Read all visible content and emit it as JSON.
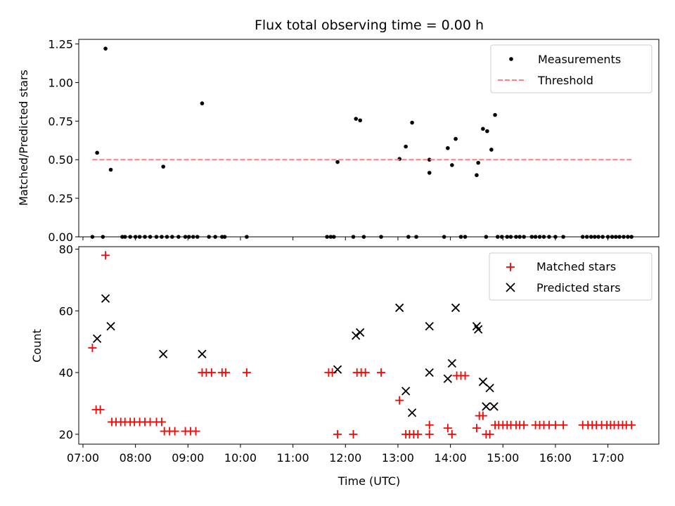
{
  "chart_data": [
    {
      "type": "scatter",
      "title": "Flux total observing time = 0.00 h",
      "xlabel": "",
      "ylabel": "Matched/Predicted stars",
      "xlim": [
        6.92,
        17.97
      ],
      "ylim": [
        0,
        1.28
      ],
      "yticks": [
        0,
        0.25,
        0.5,
        0.75,
        1.0,
        1.25
      ],
      "ytick_labels": [
        "0.00",
        "0.25",
        "0.50",
        "0.75",
        "1.00",
        "1.25"
      ],
      "legend": {
        "position": "top-right",
        "entries": [
          "Measurements",
          "Threshold"
        ]
      },
      "series": [
        {
          "name": "Measurements",
          "marker": "dot",
          "color": "#000000",
          "x": [
            7.27,
            7.43,
            7.53,
            8.53,
            9.27,
            11.85,
            12.2,
            12.28,
            13.03,
            13.15,
            13.27,
            13.6,
            13.6,
            13.95,
            14.03,
            14.1,
            14.5,
            14.53,
            14.62,
            14.7,
            14.78,
            14.85,
            7.18,
            7.38,
            7.75,
            7.8,
            7.9,
            8.0,
            8.08,
            8.18,
            8.28,
            8.4,
            8.5,
            8.6,
            8.7,
            8.82,
            8.95,
            9.02,
            9.1,
            9.18,
            9.4,
            9.52,
            9.65,
            9.7,
            10.12,
            11.65,
            11.72,
            11.78,
            12.15,
            12.35,
            12.68,
            13.2,
            13.35,
            13.88,
            14.2,
            14.28,
            14.68,
            14.9,
            14.98,
            15.08,
            15.15,
            15.25,
            15.32,
            15.4,
            15.55,
            15.62,
            15.7,
            15.78,
            15.88,
            16.0,
            16.15,
            16.52,
            16.6,
            16.68,
            16.75,
            16.82,
            16.9,
            17.0,
            17.08,
            17.15,
            17.22,
            17.3,
            17.38,
            17.45
          ],
          "y": [
            0.545,
            1.22,
            0.435,
            0.455,
            0.865,
            0.485,
            0.765,
            0.755,
            0.505,
            0.585,
            0.74,
            0.5,
            0.415,
            0.575,
            0.465,
            0.635,
            0.4,
            0.48,
            0.7,
            0.685,
            0.565,
            0.79,
            0,
            0,
            0,
            0,
            0,
            0,
            0,
            0,
            0,
            0,
            0,
            0,
            0,
            0,
            0,
            0,
            0,
            0,
            0,
            0,
            0,
            0,
            0,
            0,
            0,
            0,
            0,
            0,
            0,
            0,
            0,
            0,
            0,
            0,
            0,
            0,
            0,
            0,
            0,
            0,
            0,
            0,
            0,
            0,
            0,
            0,
            0,
            0,
            0,
            0,
            0,
            0,
            0,
            0,
            0,
            0,
            0,
            0,
            0,
            0,
            0,
            0
          ]
        },
        {
          "name": "Threshold",
          "line_style": "dashed",
          "color": "#ff7f7f",
          "x": [
            7.18,
            17.45
          ],
          "y": [
            0.5,
            0.5
          ]
        }
      ]
    },
    {
      "type": "scatter",
      "title": "",
      "xlabel": "Time (UTC)",
      "ylabel": "Count",
      "xlim": [
        6.92,
        17.97
      ],
      "ylim": [
        16.8,
        80.8
      ],
      "yticks": [
        20,
        40,
        60,
        80
      ],
      "ytick_labels": [
        "20",
        "40",
        "60",
        "80"
      ],
      "xticks": [
        7,
        8,
        9,
        10,
        11,
        12,
        13,
        14,
        15,
        16,
        17
      ],
      "xtick_labels": [
        "07:00",
        "08:00",
        "09:00",
        "10:00",
        "11:00",
        "12:00",
        "13:00",
        "14:00",
        "15:00",
        "16:00",
        "17:00"
      ],
      "legend": {
        "position": "top-right",
        "entries": [
          "Matched stars",
          "Predicted stars"
        ]
      },
      "series": [
        {
          "name": "Matched stars",
          "marker": "plus",
          "color": "#ff0000",
          "x": [
            7.18,
            7.25,
            7.33,
            7.43,
            7.55,
            7.63,
            7.72,
            7.8,
            7.9,
            7.98,
            8.08,
            8.18,
            8.28,
            8.4,
            8.5,
            8.55,
            8.65,
            8.75,
            8.95,
            9.05,
            9.15,
            9.27,
            9.35,
            9.45,
            9.65,
            9.72,
            10.12,
            11.68,
            11.75,
            11.85,
            12.15,
            12.22,
            12.3,
            12.38,
            12.68,
            13.03,
            13.15,
            13.22,
            13.3,
            13.38,
            13.6,
            13.6,
            13.95,
            14.03,
            14.12,
            14.2,
            14.28,
            14.5,
            14.55,
            14.62,
            14.68,
            14.75,
            14.85,
            14.92,
            15.0,
            15.08,
            15.15,
            15.25,
            15.32,
            15.4,
            15.62,
            15.7,
            15.78,
            15.88,
            16.0,
            16.15,
            16.52,
            16.62,
            16.7,
            16.78,
            16.88,
            16.98,
            17.05,
            17.12,
            17.2,
            17.28,
            17.35,
            17.45
          ],
          "y": [
            48,
            28,
            28,
            78,
            24,
            24,
            24,
            24,
            24,
            24,
            24,
            24,
            24,
            24,
            24,
            21,
            21,
            21,
            21,
            21,
            21,
            40,
            40,
            40,
            40,
            40,
            40,
            40,
            40,
            20,
            20,
            40,
            40,
            40,
            40,
            31,
            20,
            20,
            20,
            20,
            23,
            20,
            22,
            20,
            39,
            39,
            39,
            22,
            26,
            26,
            20,
            20,
            23,
            23,
            23,
            23,
            23,
            23,
            23,
            23,
            23,
            23,
            23,
            23,
            23,
            23,
            23,
            23,
            23,
            23,
            23,
            23,
            23,
            23,
            23,
            23,
            23,
            23
          ]
        },
        {
          "name": "Predicted stars",
          "marker": "x",
          "color": "#000000",
          "x": [
            7.27,
            7.43,
            7.53,
            8.53,
            9.27,
            11.85,
            12.2,
            12.28,
            13.03,
            13.15,
            13.27,
            13.6,
            13.6,
            13.95,
            14.03,
            14.1,
            14.5,
            14.53,
            14.62,
            14.68,
            14.75,
            14.83
          ],
          "y": [
            51,
            64,
            55,
            46,
            46,
            41,
            52,
            53,
            61,
            34,
            27,
            55,
            40,
            38,
            43,
            61,
            55,
            54,
            37,
            29,
            35,
            29
          ]
        }
      ]
    }
  ]
}
